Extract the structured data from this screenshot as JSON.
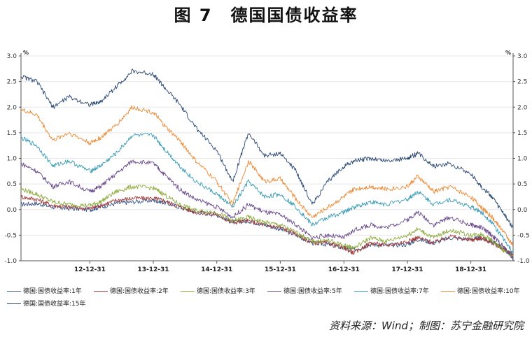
{
  "title": {
    "number": "图 7",
    "text": "德国国债收益率"
  },
  "source": "资料来源：Wind；制图：苏宁金融研究院",
  "colors": {
    "grid": "#e8e8e8",
    "axis": "#555555"
  },
  "chart_data": {
    "type": "line",
    "title": "德国国债收益率",
    "y_unit_left": "%",
    "y_unit_right": "%",
    "ylim": [
      -1.0,
      3.0
    ],
    "yticks": [
      "3.0",
      "2.5",
      "2.0",
      "1.5",
      "1.0",
      "0.5",
      "0.0",
      "-0.5",
      "-1.0"
    ],
    "ytick_values": [
      3.0,
      2.5,
      2.0,
      1.5,
      1.0,
      0.5,
      0.0,
      -0.5,
      -1.0
    ],
    "xlim": [
      "2011-12-01",
      "2019-08-31"
    ],
    "xticks": [
      {
        "label": "12-12-31",
        "date": "2012-12-31"
      },
      {
        "label": "13-12-31",
        "date": "2013-12-31"
      },
      {
        "label": "14-12-31",
        "date": "2014-12-31"
      },
      {
        "label": "15-12-31",
        "date": "2015-12-31"
      },
      {
        "label": "16-12-31",
        "date": "2016-12-31"
      },
      {
        "label": "17-12-31",
        "date": "2017-12-31"
      },
      {
        "label": "18-12-31",
        "date": "2018-12-31"
      }
    ],
    "grid": true,
    "legend_position": "bottom",
    "series": [
      {
        "name": "德国:国债收益率:1年",
        "color": "#3d5a8a",
        "points": [
          [
            "2011-12-01",
            0.1
          ],
          [
            "2012-03-01",
            0.12
          ],
          [
            "2012-06-01",
            0.05
          ],
          [
            "2012-09-01",
            0.02
          ],
          [
            "2012-12-31",
            0.0
          ],
          [
            "2013-03-01",
            0.05
          ],
          [
            "2013-06-01",
            0.12
          ],
          [
            "2013-09-01",
            0.15
          ],
          [
            "2013-12-31",
            0.18
          ],
          [
            "2014-03-01",
            0.14
          ],
          [
            "2014-06-01",
            0.05
          ],
          [
            "2014-09-01",
            -0.05
          ],
          [
            "2014-12-31",
            -0.1
          ],
          [
            "2015-04-01",
            -0.25
          ],
          [
            "2015-07-01",
            -0.22
          ],
          [
            "2015-10-01",
            -0.3
          ],
          [
            "2015-12-31",
            -0.38
          ],
          [
            "2016-04-01",
            -0.5
          ],
          [
            "2016-07-01",
            -0.65
          ],
          [
            "2016-10-01",
            -0.68
          ],
          [
            "2016-12-31",
            -0.75
          ],
          [
            "2017-03-01",
            -0.78
          ],
          [
            "2017-06-01",
            -0.68
          ],
          [
            "2017-09-01",
            -0.7
          ],
          [
            "2017-12-31",
            -0.68
          ],
          [
            "2018-03-01",
            -0.58
          ],
          [
            "2018-06-01",
            -0.65
          ],
          [
            "2018-09-01",
            -0.55
          ],
          [
            "2018-12-31",
            -0.58
          ],
          [
            "2019-03-01",
            -0.56
          ],
          [
            "2019-05-01",
            -0.62
          ],
          [
            "2019-07-01",
            -0.75
          ],
          [
            "2019-08-31",
            -0.9
          ]
        ]
      },
      {
        "name": "德国:国债收益率:2年",
        "color": "#a33a3a",
        "points": [
          [
            "2011-12-01",
            0.25
          ],
          [
            "2012-03-01",
            0.2
          ],
          [
            "2012-06-01",
            0.08
          ],
          [
            "2012-09-01",
            0.05
          ],
          [
            "2012-12-31",
            0.02
          ],
          [
            "2013-03-01",
            0.08
          ],
          [
            "2013-06-01",
            0.18
          ],
          [
            "2013-09-01",
            0.22
          ],
          [
            "2013-12-31",
            0.22
          ],
          [
            "2014-03-01",
            0.18
          ],
          [
            "2014-06-01",
            0.05
          ],
          [
            "2014-09-01",
            -0.05
          ],
          [
            "2014-12-31",
            -0.1
          ],
          [
            "2015-04-01",
            -0.25
          ],
          [
            "2015-07-01",
            -0.22
          ],
          [
            "2015-10-01",
            -0.3
          ],
          [
            "2015-12-31",
            -0.35
          ],
          [
            "2016-04-01",
            -0.48
          ],
          [
            "2016-07-01",
            -0.65
          ],
          [
            "2016-10-01",
            -0.65
          ],
          [
            "2016-12-31",
            -0.75
          ],
          [
            "2017-03-01",
            -0.85
          ],
          [
            "2017-06-01",
            -0.65
          ],
          [
            "2017-09-01",
            -0.7
          ],
          [
            "2017-12-31",
            -0.62
          ],
          [
            "2018-03-01",
            -0.55
          ],
          [
            "2018-06-01",
            -0.65
          ],
          [
            "2018-09-01",
            -0.52
          ],
          [
            "2018-12-31",
            -0.6
          ],
          [
            "2019-03-01",
            -0.55
          ],
          [
            "2019-05-01",
            -0.65
          ],
          [
            "2019-07-01",
            -0.75
          ],
          [
            "2019-08-31",
            -0.9
          ]
        ]
      },
      {
        "name": "德国:国债收益率:3年",
        "color": "#8cab3c",
        "points": [
          [
            "2011-12-01",
            0.4
          ],
          [
            "2012-03-01",
            0.3
          ],
          [
            "2012-06-01",
            0.15
          ],
          [
            "2012-09-01",
            0.1
          ],
          [
            "2012-12-31",
            0.08
          ],
          [
            "2013-03-01",
            0.15
          ],
          [
            "2013-06-01",
            0.35
          ],
          [
            "2013-09-01",
            0.45
          ],
          [
            "2013-12-31",
            0.42
          ],
          [
            "2014-03-01",
            0.3
          ],
          [
            "2014-06-01",
            0.1
          ],
          [
            "2014-09-01",
            -0.02
          ],
          [
            "2014-12-31",
            -0.05
          ],
          [
            "2015-04-01",
            -0.22
          ],
          [
            "2015-07-01",
            -0.15
          ],
          [
            "2015-10-01",
            -0.25
          ],
          [
            "2015-12-31",
            -0.3
          ],
          [
            "2016-04-01",
            -0.45
          ],
          [
            "2016-07-01",
            -0.62
          ],
          [
            "2016-10-01",
            -0.6
          ],
          [
            "2016-12-31",
            -0.7
          ],
          [
            "2017-03-01",
            -0.75
          ],
          [
            "2017-06-01",
            -0.55
          ],
          [
            "2017-09-01",
            -0.62
          ],
          [
            "2017-12-31",
            -0.5
          ],
          [
            "2018-03-01",
            -0.38
          ],
          [
            "2018-06-01",
            -0.55
          ],
          [
            "2018-09-01",
            -0.4
          ],
          [
            "2018-12-31",
            -0.5
          ],
          [
            "2019-03-01",
            -0.48
          ],
          [
            "2019-05-01",
            -0.6
          ],
          [
            "2019-07-01",
            -0.78
          ],
          [
            "2019-08-31",
            -0.92
          ]
        ]
      },
      {
        "name": "德国:国债收益率:5年",
        "color": "#6a4a8c",
        "points": [
          [
            "2011-12-01",
            0.9
          ],
          [
            "2012-03-01",
            0.75
          ],
          [
            "2012-06-01",
            0.45
          ],
          [
            "2012-09-01",
            0.55
          ],
          [
            "2012-12-31",
            0.35
          ],
          [
            "2013-03-01",
            0.45
          ],
          [
            "2013-06-01",
            0.7
          ],
          [
            "2013-09-01",
            0.95
          ],
          [
            "2013-12-31",
            0.9
          ],
          [
            "2014-03-01",
            0.7
          ],
          [
            "2014-06-01",
            0.4
          ],
          [
            "2014-09-01",
            0.2
          ],
          [
            "2014-12-31",
            0.05
          ],
          [
            "2015-04-01",
            -0.15
          ],
          [
            "2015-07-01",
            0.1
          ],
          [
            "2015-10-01",
            -0.05
          ],
          [
            "2015-12-31",
            -0.1
          ],
          [
            "2016-04-01",
            -0.3
          ],
          [
            "2016-07-01",
            -0.55
          ],
          [
            "2016-10-01",
            -0.5
          ],
          [
            "2016-12-31",
            -0.55
          ],
          [
            "2017-03-01",
            -0.4
          ],
          [
            "2017-06-01",
            -0.3
          ],
          [
            "2017-09-01",
            -0.35
          ],
          [
            "2017-12-31",
            -0.2
          ],
          [
            "2018-03-01",
            -0.05
          ],
          [
            "2018-06-01",
            -0.3
          ],
          [
            "2018-09-01",
            -0.15
          ],
          [
            "2018-12-31",
            -0.3
          ],
          [
            "2019-03-01",
            -0.35
          ],
          [
            "2019-05-01",
            -0.5
          ],
          [
            "2019-07-01",
            -0.7
          ],
          [
            "2019-08-31",
            -0.95
          ]
        ]
      },
      {
        "name": "德国:国债收益率:7年",
        "color": "#3a9cb5",
        "points": [
          [
            "2011-12-01",
            1.4
          ],
          [
            "2012-03-01",
            1.25
          ],
          [
            "2012-06-01",
            0.85
          ],
          [
            "2012-09-01",
            0.95
          ],
          [
            "2012-12-31",
            0.75
          ],
          [
            "2013-03-01",
            0.85
          ],
          [
            "2013-06-01",
            1.1
          ],
          [
            "2013-09-01",
            1.45
          ],
          [
            "2013-12-31",
            1.45
          ],
          [
            "2014-03-01",
            1.2
          ],
          [
            "2014-06-01",
            0.85
          ],
          [
            "2014-09-01",
            0.55
          ],
          [
            "2014-12-31",
            0.3
          ],
          [
            "2015-04-01",
            0.05
          ],
          [
            "2015-07-01",
            0.55
          ],
          [
            "2015-10-01",
            0.25
          ],
          [
            "2015-12-31",
            0.3
          ],
          [
            "2016-04-01",
            0.05
          ],
          [
            "2016-07-01",
            -0.3
          ],
          [
            "2016-10-01",
            -0.15
          ],
          [
            "2016-12-31",
            -0.05
          ],
          [
            "2017-03-01",
            0.05
          ],
          [
            "2017-06-01",
            0.15
          ],
          [
            "2017-09-01",
            0.1
          ],
          [
            "2017-12-31",
            0.2
          ],
          [
            "2018-03-01",
            0.35
          ],
          [
            "2018-06-01",
            0.1
          ],
          [
            "2018-09-01",
            0.2
          ],
          [
            "2018-12-31",
            0.05
          ],
          [
            "2019-03-01",
            -0.05
          ],
          [
            "2019-05-01",
            -0.25
          ],
          [
            "2019-07-01",
            -0.55
          ],
          [
            "2019-08-31",
            -0.85
          ]
        ]
      },
      {
        "name": "德国:国债收益率:10年",
        "color": "#ec8a35",
        "points": [
          [
            "2011-12-01",
            1.95
          ],
          [
            "2012-03-01",
            1.85
          ],
          [
            "2012-06-01",
            1.35
          ],
          [
            "2012-09-01",
            1.5
          ],
          [
            "2012-12-31",
            1.3
          ],
          [
            "2013-03-01",
            1.4
          ],
          [
            "2013-06-01",
            1.65
          ],
          [
            "2013-09-01",
            2.0
          ],
          [
            "2013-12-31",
            1.9
          ],
          [
            "2014-03-01",
            1.65
          ],
          [
            "2014-06-01",
            1.35
          ],
          [
            "2014-09-01",
            0.95
          ],
          [
            "2014-12-31",
            0.55
          ],
          [
            "2015-04-01",
            0.1
          ],
          [
            "2015-07-01",
            0.95
          ],
          [
            "2015-10-01",
            0.55
          ],
          [
            "2015-12-31",
            0.6
          ],
          [
            "2016-04-01",
            0.2
          ],
          [
            "2016-07-01",
            -0.15
          ],
          [
            "2016-10-01",
            0.05
          ],
          [
            "2016-12-31",
            0.25
          ],
          [
            "2017-03-01",
            0.4
          ],
          [
            "2017-06-01",
            0.45
          ],
          [
            "2017-09-01",
            0.4
          ],
          [
            "2017-12-31",
            0.45
          ],
          [
            "2018-03-01",
            0.65
          ],
          [
            "2018-06-01",
            0.35
          ],
          [
            "2018-09-01",
            0.45
          ],
          [
            "2018-12-31",
            0.25
          ],
          [
            "2019-03-01",
            0.05
          ],
          [
            "2019-05-01",
            -0.15
          ],
          [
            "2019-07-01",
            -0.4
          ],
          [
            "2019-08-31",
            -0.7
          ]
        ]
      },
      {
        "name": "德国:国债收益率:15年",
        "color": "#2c4a75",
        "points": [
          [
            "2011-12-01",
            2.6
          ],
          [
            "2012-03-01",
            2.5
          ],
          [
            "2012-06-01",
            2.0
          ],
          [
            "2012-09-01",
            2.2
          ],
          [
            "2012-12-31",
            2.05
          ],
          [
            "2013-03-01",
            2.1
          ],
          [
            "2013-06-01",
            2.4
          ],
          [
            "2013-09-01",
            2.7
          ],
          [
            "2013-12-31",
            2.65
          ],
          [
            "2014-03-01",
            2.4
          ],
          [
            "2014-06-01",
            2.05
          ],
          [
            "2014-09-01",
            1.6
          ],
          [
            "2014-12-31",
            1.15
          ],
          [
            "2015-04-01",
            0.55
          ],
          [
            "2015-07-01",
            1.5
          ],
          [
            "2015-10-01",
            1.05
          ],
          [
            "2015-12-31",
            1.1
          ],
          [
            "2016-04-01",
            0.75
          ],
          [
            "2016-07-01",
            0.1
          ],
          [
            "2016-10-01",
            0.55
          ],
          [
            "2016-12-31",
            0.85
          ],
          [
            "2017-03-01",
            0.95
          ],
          [
            "2017-06-01",
            1.0
          ],
          [
            "2017-09-01",
            0.95
          ],
          [
            "2017-12-31",
            1.0
          ],
          [
            "2018-03-01",
            1.1
          ],
          [
            "2018-06-01",
            0.85
          ],
          [
            "2018-09-01",
            0.9
          ],
          [
            "2018-12-31",
            0.7
          ],
          [
            "2019-03-01",
            0.45
          ],
          [
            "2019-05-01",
            0.25
          ],
          [
            "2019-07-01",
            -0.05
          ],
          [
            "2019-08-31",
            -0.35
          ]
        ]
      }
    ]
  }
}
